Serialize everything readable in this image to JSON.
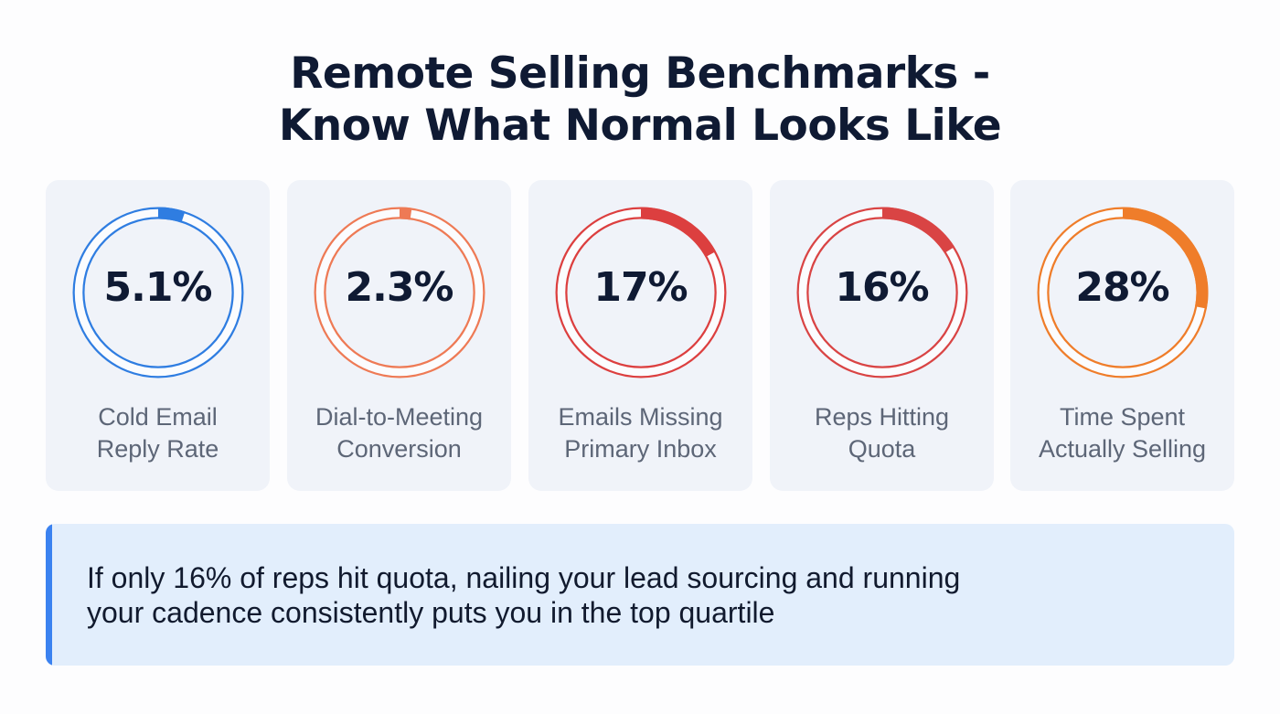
{
  "title_line1": "Remote Selling Benchmarks -",
  "title_line2": "Know What Normal Looks Like",
  "cards": [
    {
      "value": "5.1%",
      "percent": 5.1,
      "label_line1": "Cold Email",
      "label_line2": "Reply Rate",
      "color": "#2f7de1"
    },
    {
      "value": "2.3%",
      "percent": 2.3,
      "label_line1": "Dial-to-Meeting",
      "label_line2": "Conversion",
      "color": "#ee7a55"
    },
    {
      "value": "17%",
      "percent": 17,
      "label_line1": "Emails Missing",
      "label_line2": "Primary Inbox",
      "color": "#dc3f3f"
    },
    {
      "value": "16%",
      "percent": 16,
      "label_line1": "Reps Hitting",
      "label_line2": "Quota",
      "color": "#d94444"
    },
    {
      "value": "28%",
      "percent": 28,
      "label_line1": "Time Spent",
      "label_line2": "Actually Selling",
      "color": "#ef7d2a"
    }
  ],
  "callout": {
    "line1": "If only 16% of reps hit quota, nailing your lead sourcing and running",
    "line2": "your cadence consistently puts you in the top quartile",
    "accent_color": "#3b82f0"
  }
}
